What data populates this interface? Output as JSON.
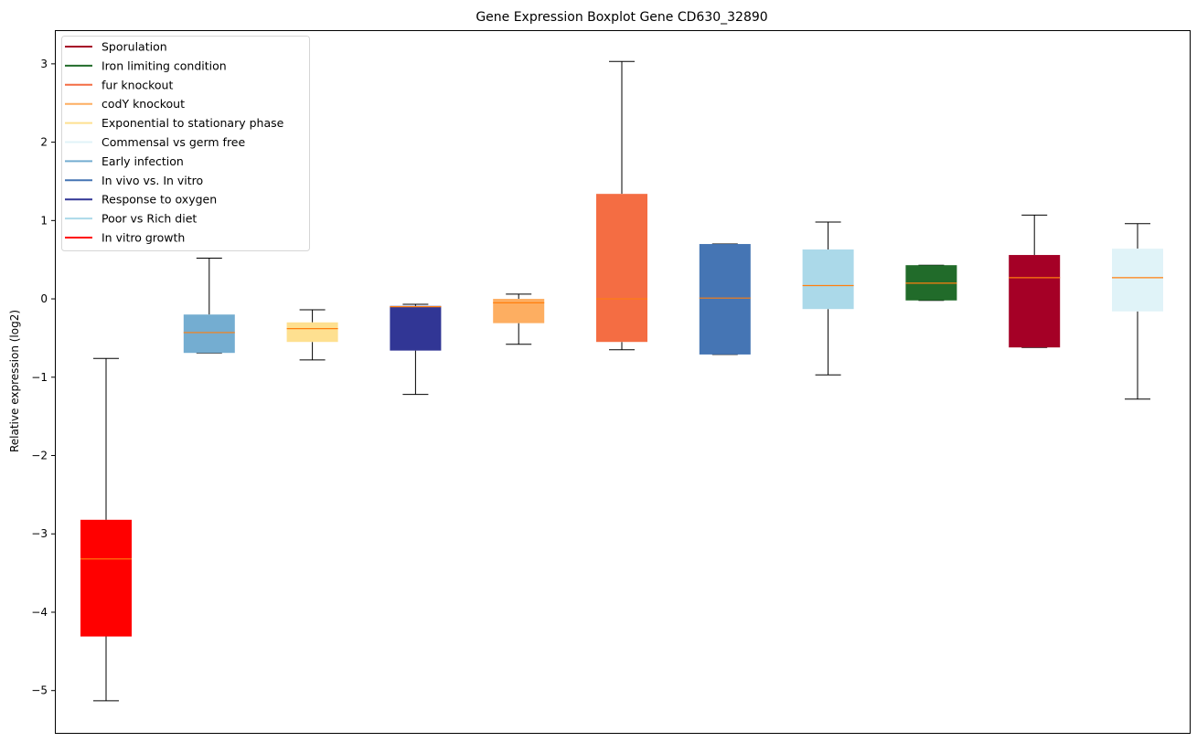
{
  "chart_data": {
    "type": "boxplot",
    "title": "Gene Expression Boxplot Gene CD630_32890",
    "xlabel": "",
    "ylabel": "Relative expression (log2)",
    "ylim": [
      -5.54,
      3.43
    ],
    "yticks": [
      3,
      2,
      1,
      0,
      -1,
      -2,
      -3,
      -4,
      -5
    ],
    "ytick_labels": [
      "3",
      "2",
      "1",
      "0",
      "−1",
      "−2",
      "−3",
      "−4",
      "−5"
    ],
    "grid": false,
    "legend_position": "top-left",
    "legend": [
      {
        "label": "Sporulation",
        "color": "#a50026"
      },
      {
        "label": "Iron limiting condition",
        "color": "#216b2a"
      },
      {
        "label": "fur knockout",
        "color": "#f46d43"
      },
      {
        "label": "codY knockout",
        "color": "#fdae61"
      },
      {
        "label": "Exponential to stationary phase",
        "color": "#fee090"
      },
      {
        "label": "Commensal vs germ free",
        "color": "#e0f3f8"
      },
      {
        "label": "Early infection",
        "color": "#74add1"
      },
      {
        "label": "In vivo vs. In vitro",
        "color": "#4575b4"
      },
      {
        "label": "Response to oxygen",
        "color": "#313695"
      },
      {
        "label": "Poor vs Rich diet",
        "color": "#abd9e9"
      },
      {
        "label": "In vitro growth",
        "color": "#ff0000"
      }
    ],
    "median_color": "#ff7f0e",
    "series": [
      {
        "name": "In vitro growth",
        "color": "#ff0000",
        "whislo": -5.13,
        "q1": -4.31,
        "median": -3.32,
        "q3": -2.82,
        "whishi": -0.76
      },
      {
        "name": "Early infection",
        "color": "#74add1",
        "whislo": -0.69,
        "q1": -0.69,
        "median": -0.43,
        "q3": -0.2,
        "whishi": 0.52
      },
      {
        "name": "Exponential to stationary phase",
        "color": "#fee090",
        "whislo": -0.78,
        "q1": -0.55,
        "median": -0.38,
        "q3": -0.3,
        "whishi": -0.14
      },
      {
        "name": "Response to oxygen",
        "color": "#313695",
        "whislo": -1.22,
        "q1": -0.66,
        "median": -0.1,
        "q3": -0.09,
        "whishi": -0.07
      },
      {
        "name": "codY knockout",
        "color": "#fdae61",
        "whislo": -0.58,
        "q1": -0.31,
        "median": -0.05,
        "q3": 0.0,
        "whishi": 0.06
      },
      {
        "name": "fur knockout",
        "color": "#f46d43",
        "whislo": -0.65,
        "q1": -0.55,
        "median": 0.0,
        "q3": 1.34,
        "whishi": 3.03
      },
      {
        "name": "In vivo vs. In vitro",
        "color": "#4575b4",
        "whislo": -0.71,
        "q1": -0.71,
        "median": 0.01,
        "q3": 0.7,
        "whishi": 0.7
      },
      {
        "name": "Poor vs Rich diet",
        "color": "#abd9e9",
        "whislo": -0.97,
        "q1": -0.13,
        "median": 0.17,
        "q3": 0.63,
        "whishi": 0.98
      },
      {
        "name": "Iron limiting condition",
        "color": "#216b2a",
        "whislo": -0.02,
        "q1": -0.02,
        "median": 0.2,
        "q3": 0.43,
        "whishi": 0.43
      },
      {
        "name": "Sporulation",
        "color": "#a50026",
        "whislo": -0.62,
        "q1": -0.62,
        "median": 0.27,
        "q3": 0.56,
        "whishi": 1.07
      },
      {
        "name": "Commensal vs germ free",
        "color": "#e0f3f8",
        "whislo": -1.28,
        "q1": -0.16,
        "median": 0.27,
        "q3": 0.64,
        "whishi": 0.96
      }
    ]
  }
}
